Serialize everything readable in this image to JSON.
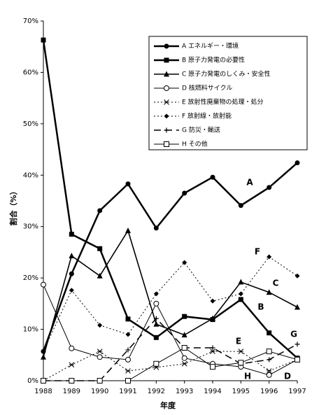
{
  "chart_data": {
    "type": "line",
    "x_label": "年度",
    "y_label": "割合（%）",
    "categories": [
      "1988",
      "1989",
      "1990",
      "1991",
      "1992",
      "1993",
      "1994",
      "1995",
      "1996",
      "1997"
    ],
    "ylim": [
      0,
      70
    ],
    "yticks": [
      {
        "value": 0,
        "label": "0%"
      },
      {
        "value": 10,
        "label": "10%"
      },
      {
        "value": 20,
        "label": "20%"
      },
      {
        "value": 30,
        "label": "30%"
      },
      {
        "value": 40,
        "label": "40%"
      },
      {
        "value": 50,
        "label": "50%"
      },
      {
        "value": 60,
        "label": "60%"
      },
      {
        "value": 70,
        "label": "70%"
      }
    ],
    "series": [
      {
        "name": "A エネルギー・環境",
        "color": "#000",
        "marker": "circle-filled",
        "width": 2.5,
        "dash": "none",
        "values": [
          5.7,
          20.8,
          33.1,
          38.3,
          29.7,
          36.5,
          39.6,
          34.1,
          37.6,
          42.4
        ]
      },
      {
        "name": "B 原子力発電の必要性",
        "color": "#000",
        "marker": "square-filled",
        "width": 2.5,
        "dash": "none",
        "values": [
          66.3,
          28.5,
          25.7,
          12.0,
          8.4,
          12.5,
          11.9,
          15.8,
          9.3,
          4.4
        ]
      },
      {
        "name": "C 原子力発電のしくみ・安全性",
        "color": "#000",
        "marker": "triangle-filled",
        "width": 1.6,
        "dash": "none",
        "values": [
          4.6,
          24.3,
          20.4,
          29.2,
          11.0,
          8.9,
          12.1,
          19.2,
          17.2,
          14.3
        ]
      },
      {
        "name": "D 核燃料サイクル",
        "color": "#000",
        "marker": "circle-open",
        "width": 1,
        "dash": "none",
        "values": [
          18.7,
          6.3,
          4.6,
          4.1,
          15.0,
          4.4,
          3.3,
          2.7,
          1.1,
          4.1
        ]
      },
      {
        "name": "E 放射性廃棄物の処理・処分",
        "color": "#000",
        "marker": "asterisk",
        "width": 1,
        "dash": "2,3",
        "values": [
          0,
          3.1,
          5.7,
          1.9,
          2.6,
          3.3,
          5.7,
          5.7,
          1.9,
          4.1
        ]
      },
      {
        "name": "F 放射線・放射能",
        "color": "#000",
        "marker": "diamond-filled",
        "width": 1,
        "dash": "2,3",
        "values": [
          5.7,
          17.6,
          10.8,
          9.0,
          16.9,
          23.0,
          15.5,
          16.9,
          24.1,
          20.4
        ]
      },
      {
        "name": "G 防災・輸送",
        "color": "#000",
        "marker": "plus",
        "width": 1.5,
        "dash": "10,6",
        "values": [
          0,
          0,
          0,
          6.0,
          12.1,
          6.4,
          6.4,
          3.3,
          4.1,
          7.1
        ]
      },
      {
        "name": "H その他",
        "color": "#000",
        "marker": "square-open",
        "width": 1,
        "dash": "none",
        "values": [
          0,
          0,
          0,
          0,
          3.3,
          6.4,
          2.7,
          3.5,
          5.7,
          4.1
        ]
      }
    ],
    "annotations": [
      "A",
      "F",
      "C",
      "B",
      "E",
      "G",
      "H",
      "D"
    ]
  }
}
